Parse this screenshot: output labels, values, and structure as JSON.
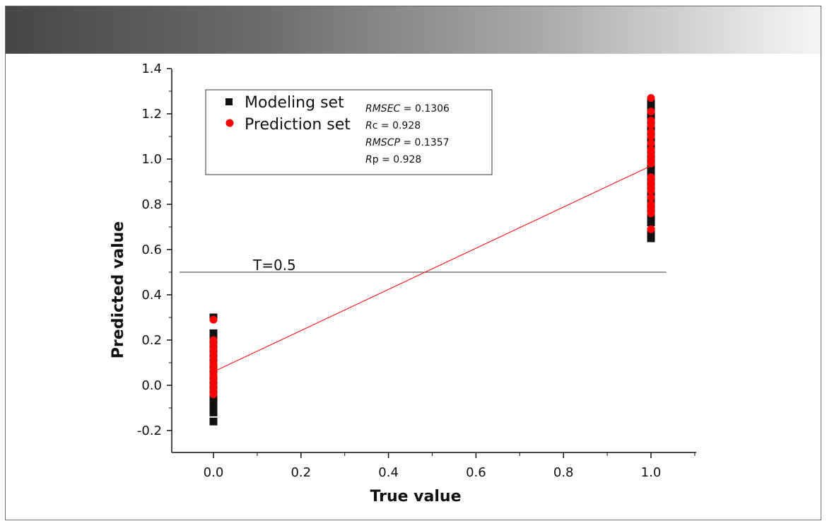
{
  "chart_data": {
    "type": "scatter",
    "xlabel": "True value",
    "ylabel": "Predicted value",
    "xlim": [
      -0.1,
      1.1
    ],
    "ylim": [
      -0.2,
      1.4
    ],
    "xticks": [
      "0.0",
      "0.2",
      "0.4",
      "0.6",
      "0.8",
      "1.0"
    ],
    "yticks": [
      "-0.2",
      "0.0",
      "0.2",
      "0.4",
      "0.6",
      "0.8",
      "1.0",
      "1.2",
      "1.4"
    ],
    "legend_position": "top-left",
    "grid": false,
    "series": [
      {
        "name": "Modeling set",
        "marker": "square",
        "color": "#111111",
        "points": [
          [
            0,
            -0.16
          ],
          [
            0,
            -0.12
          ],
          [
            0,
            -0.11
          ],
          [
            0,
            -0.1
          ],
          [
            0,
            -0.09
          ],
          [
            0,
            -0.07
          ],
          [
            0,
            -0.05
          ],
          [
            0,
            -0.03
          ],
          [
            0,
            -0.01
          ],
          [
            0,
            0.0
          ],
          [
            0,
            0.02
          ],
          [
            0,
            0.03
          ],
          [
            0,
            0.05
          ],
          [
            0,
            0.06
          ],
          [
            0,
            0.08
          ],
          [
            0,
            0.09
          ],
          [
            0,
            0.11
          ],
          [
            0,
            0.12
          ],
          [
            0,
            0.14
          ],
          [
            0,
            0.15
          ],
          [
            0,
            0.17
          ],
          [
            0,
            0.18
          ],
          [
            0,
            0.2
          ],
          [
            0,
            0.21
          ],
          [
            0,
            0.23
          ],
          [
            0,
            0.3
          ],
          [
            1,
            0.65
          ],
          [
            1,
            0.68
          ],
          [
            1,
            0.72
          ],
          [
            1,
            0.74
          ],
          [
            1,
            0.76
          ],
          [
            1,
            0.78
          ],
          [
            1,
            0.8
          ],
          [
            1,
            0.82
          ],
          [
            1,
            0.84
          ],
          [
            1,
            0.86
          ],
          [
            1,
            0.88
          ],
          [
            1,
            0.9
          ],
          [
            1,
            0.92
          ],
          [
            1,
            0.94
          ],
          [
            1,
            0.96
          ],
          [
            1,
            0.98
          ],
          [
            1,
            1.0
          ],
          [
            1,
            1.02
          ],
          [
            1,
            1.04
          ],
          [
            1,
            1.06
          ],
          [
            1,
            1.08
          ],
          [
            1,
            1.1
          ],
          [
            1,
            1.12
          ],
          [
            1,
            1.14
          ],
          [
            1,
            1.16
          ],
          [
            1,
            1.18
          ],
          [
            1,
            1.2
          ],
          [
            1,
            1.22
          ],
          [
            1,
            1.25
          ]
        ]
      },
      {
        "name": "Prediction set",
        "marker": "circle",
        "color": "#ff0000",
        "points": [
          [
            0,
            -0.04
          ],
          [
            0,
            -0.02
          ],
          [
            0,
            0.0
          ],
          [
            0,
            0.02
          ],
          [
            0,
            0.04
          ],
          [
            0,
            0.05
          ],
          [
            0,
            0.07
          ],
          [
            0,
            0.09
          ],
          [
            0,
            0.1
          ],
          [
            0,
            0.12
          ],
          [
            0,
            0.14
          ],
          [
            0,
            0.16
          ],
          [
            0,
            0.18
          ],
          [
            0,
            0.2
          ],
          [
            0,
            0.29
          ],
          [
            1,
            0.69
          ],
          [
            1,
            0.76
          ],
          [
            1,
            0.78
          ],
          [
            1,
            0.8
          ],
          [
            1,
            0.83
          ],
          [
            1,
            0.86
          ],
          [
            1,
            0.88
          ],
          [
            1,
            0.9
          ],
          [
            1,
            0.92
          ],
          [
            1,
            0.98
          ],
          [
            1,
            1.0
          ],
          [
            1,
            1.02
          ],
          [
            1,
            1.04
          ],
          [
            1,
            1.07
          ],
          [
            1,
            1.1
          ],
          [
            1,
            1.12
          ],
          [
            1,
            1.15
          ],
          [
            1,
            1.17
          ],
          [
            1,
            1.21
          ],
          [
            1,
            1.27
          ]
        ]
      }
    ],
    "fit_line": {
      "color": "#ff0000",
      "x": [
        0,
        1
      ],
      "y": [
        0.06,
        0.97
      ]
    },
    "threshold_line": {
      "y": 0.5,
      "x": [
        -0.1,
        1.03
      ],
      "label": "T=0.5"
    },
    "statistics": [
      {
        "name": "RMSEC",
        "value": "= 0.1306"
      },
      {
        "name": "R",
        "sub": "c",
        "value": "= 0.928"
      },
      {
        "name": "RMSCP",
        "value": "= 0.1357"
      },
      {
        "name": "R",
        "sub": "p",
        "value": "= 0.928"
      }
    ]
  }
}
